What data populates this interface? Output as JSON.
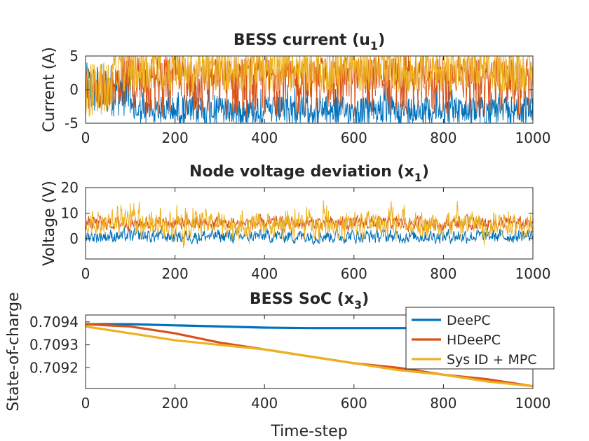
{
  "chart_data": [
    {
      "type": "line",
      "title": "BESS current (u",
      "title_subscript": "1",
      "title_suffix": ")",
      "ylabel": "Current (A)",
      "xlabel": "",
      "xlim": [
        0,
        1000
      ],
      "ylim": [
        -5,
        5
      ],
      "xticks": [
        0,
        200,
        400,
        600,
        800,
        1000
      ],
      "yticks": [
        -5,
        0,
        5
      ],
      "grid": false,
      "series": [
        {
          "name": "DeePC",
          "color": "#0072BD",
          "description": "high-frequency, mostly between -5 and 0 after step 100; near 0 to 5 early",
          "range": [
            -5,
            5
          ]
        },
        {
          "name": "HDeePC",
          "color": "#D95319",
          "description": "high-frequency, spans -5 to 5",
          "range": [
            -5,
            5
          ]
        },
        {
          "name": "Sys ID + MPC",
          "color": "#EDB120",
          "description": "high-frequency, spans 0 to 5 with spikes",
          "range": [
            -5,
            5
          ]
        }
      ]
    },
    {
      "type": "line",
      "title": "Node voltage deviation (x",
      "title_subscript": "1",
      "title_suffix": ")",
      "ylabel": "Voltage (V)",
      "xlabel": "",
      "xlim": [
        0,
        1000
      ],
      "ylim": [
        -8,
        20
      ],
      "xticks": [
        0,
        200,
        400,
        600,
        800,
        1000
      ],
      "yticks": [
        0,
        10,
        20
      ],
      "grid": false,
      "series": [
        {
          "name": "DeePC",
          "color": "#0072BD",
          "mean": 1,
          "amplitude": 4
        },
        {
          "name": "HDeePC",
          "color": "#D95319",
          "mean": 6,
          "amplitude": 4
        },
        {
          "name": "Sys ID + MPC",
          "color": "#EDB120",
          "mean": 6,
          "amplitude": 7
        }
      ]
    },
    {
      "type": "line",
      "title": "BESS SoC (x",
      "title_subscript": "3",
      "title_suffix": ")",
      "ylabel": "State-of-charge",
      "xlabel": "Time-step",
      "xlim": [
        0,
        1000
      ],
      "ylim": [
        0.70911,
        0.70943
      ],
      "xticks": [
        0,
        200,
        400,
        600,
        800,
        1000
      ],
      "yticks": [
        0.7092,
        0.7093,
        0.7094
      ],
      "ytick_labels": [
        "0.7092",
        "0.7093",
        "0.7094"
      ],
      "grid": false,
      "legend_position": "top-right",
      "series": [
        {
          "name": "DeePC",
          "color": "#0072BD",
          "x": [
            0,
            100,
            200,
            300,
            400,
            500,
            600,
            700,
            800
          ],
          "y": [
            0.70939,
            0.70939,
            0.709385,
            0.70938,
            0.709375,
            0.709373,
            0.709373,
            0.709373,
            0.709373
          ]
        },
        {
          "name": "HDeePC",
          "color": "#D95319",
          "x": [
            0,
            100,
            200,
            300,
            400,
            500,
            600,
            700,
            800,
            900,
            1000
          ],
          "y": [
            0.70939,
            0.70938,
            0.70935,
            0.70931,
            0.70928,
            0.70925,
            0.70922,
            0.7092,
            0.70917,
            0.70915,
            0.70912
          ]
        },
        {
          "name": "Sys ID + MPC",
          "color": "#EDB120",
          "x": [
            0,
            100,
            200,
            300,
            400,
            500,
            600,
            700,
            800,
            900,
            1000
          ],
          "y": [
            0.70938,
            0.70935,
            0.70932,
            0.7093,
            0.70928,
            0.70925,
            0.70922,
            0.70919,
            0.70917,
            0.70914,
            0.70912
          ]
        }
      ]
    }
  ]
}
